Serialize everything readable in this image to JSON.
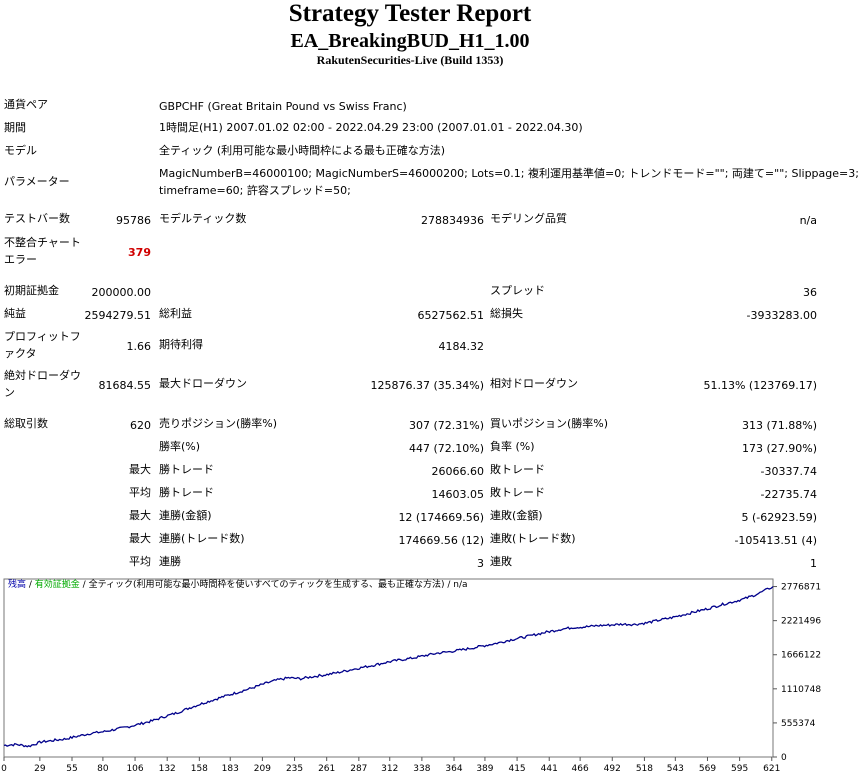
{
  "header": {
    "title": "Strategy Tester Report",
    "ea_name": "EA_BreakingBUD_H1_1.00",
    "server": "RakutenSecurities-Live (Build 1353)"
  },
  "info": {
    "pair_label": "通貨ペア",
    "pair_value": "GBPCHF (Great Britain Pound vs Swiss Franc)",
    "period_label": "期間",
    "period_value": "1時間足(H1) 2007.01.02 02:00 - 2022.04.29 23:00 (2007.01.01 - 2022.04.30)",
    "model_label": "モデル",
    "model_value": "全ティック (利用可能な最小時間枠による最も正確な方法)",
    "params_label": "パラメーター",
    "params_line1": "MagicNumberB=46000100; MagicNumberS=46000200; Lots=0.1; 複利運用基準値=0; トレンドモード=\"\"; 両建て=\"\"; Slippage=3;",
    "params_line2": "timeframe=60; 許容スプレッド=50;"
  },
  "stats": {
    "bars_label": "テストバー数",
    "bars": "95786",
    "ticks_label": "モデルティック数",
    "ticks": "278834936",
    "quality_label": "モデリング品質",
    "quality": "n/a",
    "mismatch_label_1": "不整合チャート",
    "mismatch_label_2": "エラー",
    "mismatch": "379",
    "deposit_label": "初期証拠金",
    "deposit": "200000.00",
    "spread_label": "スプレッド",
    "spread": "36",
    "net_label": "純益",
    "net": "2594279.51",
    "gross_profit_label": "総利益",
    "gross_profit": "6527562.51",
    "gross_loss_label": "総損失",
    "gross_loss": "-3933283.00",
    "pf_label_1": "プロフィットフ",
    "pf_label_2": "ァクタ",
    "pf": "1.66",
    "expected_label": "期待利得",
    "expected": "4184.32",
    "abs_dd_label_1": "絶対ドローダウ",
    "abs_dd_label_2": "ン",
    "abs_dd": "81684.55",
    "max_dd_label": "最大ドローダウン",
    "max_dd": "125876.37 (35.34%)",
    "rel_dd_label": "相対ドローダウン",
    "rel_dd": "51.13% (123769.17)",
    "trades_label": "総取引数",
    "trades": "620",
    "short_label": "売りポジション(勝率%)",
    "short": "307 (72.31%)",
    "long_label": "買いポジション(勝率%)",
    "long": "313 (71.88%)",
    "win_label": "勝率(%)",
    "win": "447 (72.10%)",
    "loss_label": "負率 (%)",
    "loss": "173 (27.90%)",
    "max_word": "最大",
    "avg_word": "平均",
    "win_trade_label": "勝トレード",
    "max_win_trade": "26066.60",
    "avg_win_trade": "14603.05",
    "loss_trade_label": "敗トレード",
    "max_loss_trade": "-30337.74",
    "avg_loss_trade": "-22735.74",
    "cons_wins_amount_label": "連勝(金額)",
    "cons_wins_amount": "12 (174669.56)",
    "cons_losses_amount_label": "連敗(金額)",
    "cons_losses_amount": "5 (-62923.59)",
    "cons_wins_count_label": "連勝(トレード数)",
    "cons_wins_count": "174669.56 (12)",
    "cons_losses_count_label": "連敗(トレード数)",
    "cons_losses_count": "-105413.51 (4)",
    "avg_wins_label": "連勝",
    "avg_wins": "3",
    "avg_losses_label": "連敗",
    "avg_losses": "1"
  },
  "chart_legend": {
    "balance": "残高",
    "sep1": " / ",
    "equity": "有効証拠金",
    "sep2": " / ",
    "model": "全ティック(利用可能な最小時間枠を使いすべてのティックを生成する、最も正確な方法)",
    "sep3": " / ",
    "quality": "n/a",
    "balance_color": "#0000aa",
    "equity_color": "#00aa00"
  },
  "chart_data": {
    "type": "line",
    "x_ticks": [
      "0",
      "29",
      "55",
      "80",
      "106",
      "132",
      "158",
      "183",
      "209",
      "235",
      "261",
      "287",
      "312",
      "338",
      "364",
      "389",
      "415",
      "441",
      "466",
      "492",
      "518",
      "543",
      "569",
      "595",
      "621"
    ],
    "y_ticks": [
      "2776871",
      "2221496",
      "1666122",
      "1110748",
      "555374",
      "0"
    ],
    "xlim": [
      0,
      622
    ],
    "ylim": [
      0,
      2900000
    ],
    "series": [
      {
        "color": "#00008b",
        "points": [
          [
            0,
            190000
          ],
          [
            10,
            205000
          ],
          [
            20,
            175000
          ],
          [
            30,
            245000
          ],
          [
            40,
            270000
          ],
          [
            50,
            295000
          ],
          [
            60,
            340000
          ],
          [
            70,
            385000
          ],
          [
            80,
            410000
          ],
          [
            90,
            450000
          ],
          [
            100,
            490000
          ],
          [
            110,
            540000
          ],
          [
            120,
            590000
          ],
          [
            130,
            660000
          ],
          [
            140,
            720000
          ],
          [
            150,
            800000
          ],
          [
            160,
            870000
          ],
          [
            170,
            935000
          ],
          [
            180,
            1000000
          ],
          [
            190,
            1060000
          ],
          [
            200,
            1120000
          ],
          [
            210,
            1190000
          ],
          [
            220,
            1250000
          ],
          [
            230,
            1290000
          ],
          [
            240,
            1275000
          ],
          [
            250,
            1310000
          ],
          [
            260,
            1340000
          ],
          [
            270,
            1375000
          ],
          [
            280,
            1420000
          ],
          [
            290,
            1460000
          ],
          [
            300,
            1500000
          ],
          [
            310,
            1545000
          ],
          [
            320,
            1580000
          ],
          [
            330,
            1610000
          ],
          [
            340,
            1650000
          ],
          [
            350,
            1690000
          ],
          [
            360,
            1715000
          ],
          [
            370,
            1745000
          ],
          [
            380,
            1780000
          ],
          [
            390,
            1820000
          ],
          [
            400,
            1860000
          ],
          [
            410,
            1910000
          ],
          [
            420,
            1950000
          ],
          [
            430,
            1995000
          ],
          [
            440,
            2040000
          ],
          [
            450,
            2080000
          ],
          [
            460,
            2110000
          ],
          [
            470,
            2120000
          ],
          [
            480,
            2140000
          ],
          [
            490,
            2150000
          ],
          [
            500,
            2165000
          ],
          [
            510,
            2160000
          ],
          [
            520,
            2185000
          ],
          [
            530,
            2230000
          ],
          [
            540,
            2270000
          ],
          [
            550,
            2320000
          ],
          [
            560,
            2370000
          ],
          [
            570,
            2420000
          ],
          [
            580,
            2480000
          ],
          [
            590,
            2530000
          ],
          [
            600,
            2585000
          ],
          [
            610,
            2660000
          ],
          [
            622,
            2776871
          ]
        ]
      }
    ]
  }
}
